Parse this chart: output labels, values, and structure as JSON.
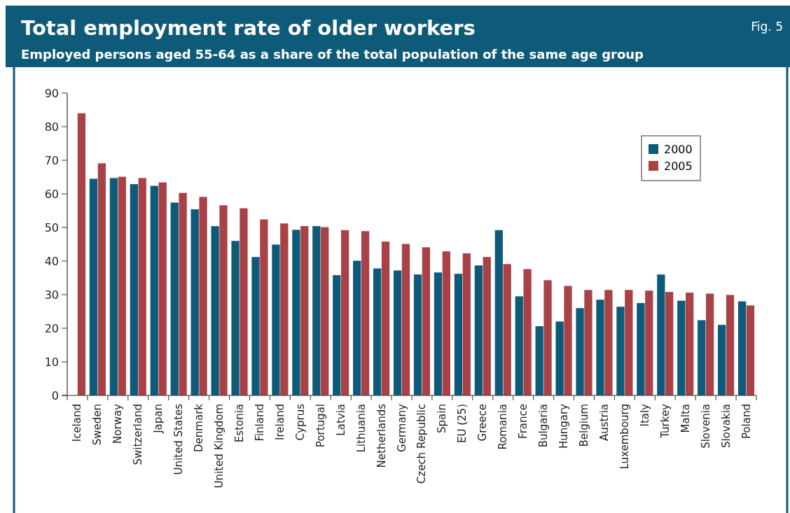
{
  "chart_data": {
    "type": "bar",
    "title": "Total employment rate of older workers",
    "subtitle": "Employed persons aged 55-64 as a share of the total population of the same age group",
    "annotations": [
      "Fig. 5"
    ],
    "categories": [
      "Iceland",
      "Sweden",
      "Norway",
      "Switzerland",
      "Japan",
      "United States",
      "Denmark",
      "United Kingdom",
      "Estonia",
      "Finland",
      "Ireland",
      "Cyprus",
      "Portugal",
      "Latvia",
      "Lithuania",
      "Netherlands",
      "Germany",
      "Czech Republic",
      "Spain",
      "EU (25)",
      "Greece",
      "Romania",
      "France",
      "Bulgaria",
      "Hungary",
      "Belgium",
      "Austria",
      "Luxembourg",
      "Italy",
      "Turkey",
      "Malta",
      "Slovenia",
      "Slovakia",
      "Poland"
    ],
    "series": [
      {
        "name": "2000",
        "color": "#0d5b79",
        "values": [
          null,
          64.5,
          64.7,
          62.9,
          62.4,
          57.4,
          55.4,
          50.4,
          46.0,
          41.2,
          44.9,
          49.3,
          50.4,
          35.8,
          40.1,
          37.8,
          37.2,
          36.0,
          36.6,
          36.2,
          38.7,
          49.2,
          29.5,
          20.6,
          22.0,
          26.0,
          28.5,
          26.4,
          27.5,
          36.0,
          28.2,
          22.4,
          21.0,
          28.0
        ]
      },
      {
        "name": "2005",
        "color": "#a94246",
        "values": [
          84.0,
          69.1,
          65.1,
          64.7,
          63.4,
          60.3,
          59.1,
          56.6,
          55.7,
          52.4,
          51.2,
          50.4,
          50.1,
          49.2,
          48.9,
          45.8,
          45.1,
          44.1,
          42.9,
          42.3,
          41.2,
          39.1,
          37.6,
          34.3,
          32.6,
          31.4,
          31.4,
          31.4,
          31.2,
          30.8,
          30.6,
          30.3,
          29.9,
          26.8
        ]
      }
    ],
    "ylim": [
      0,
      90
    ],
    "yticks": [
      0,
      10,
      20,
      30,
      40,
      50,
      60,
      70,
      80,
      90
    ],
    "grid": false,
    "legend": "top right"
  }
}
